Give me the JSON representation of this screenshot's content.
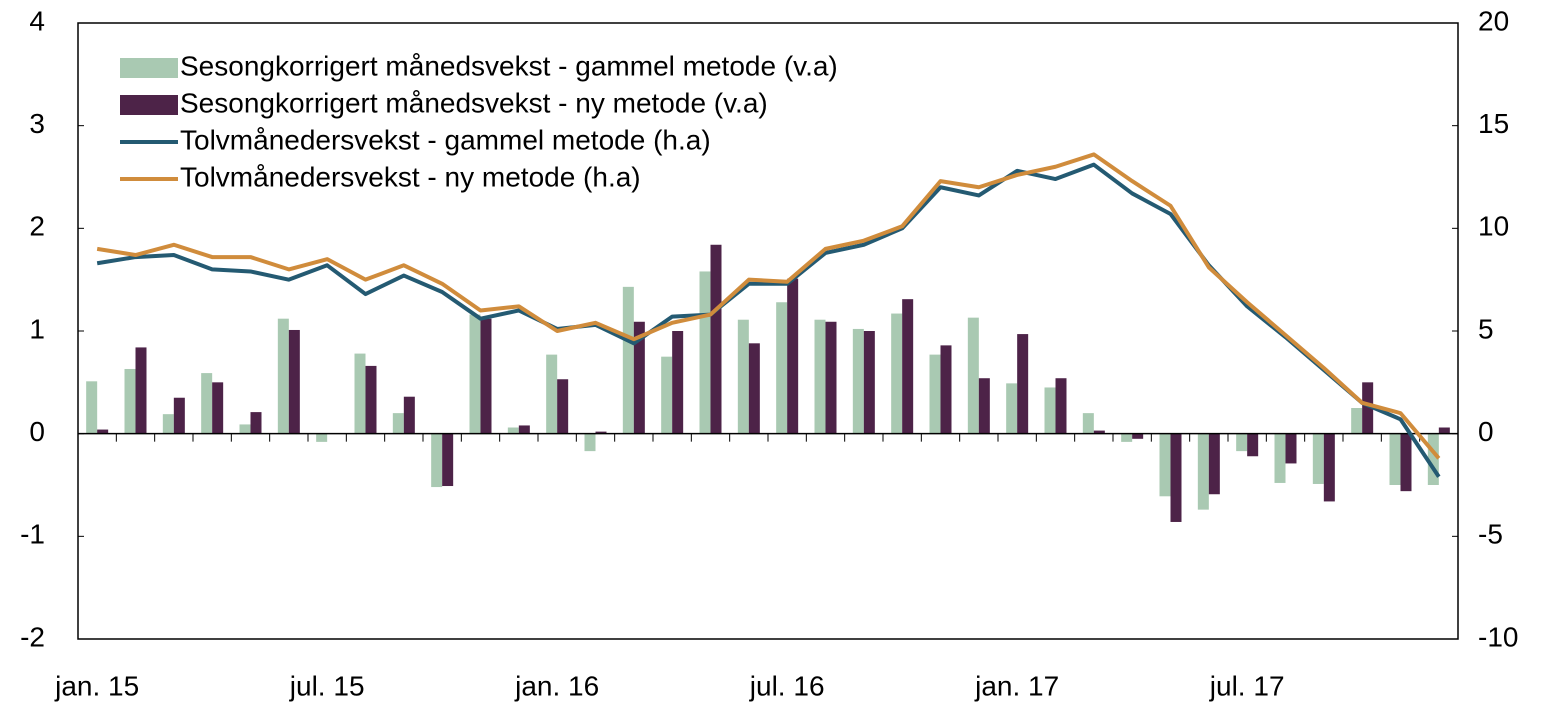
{
  "chart_data": {
    "type": "bar_line",
    "categories": [
      "jan. 15",
      null,
      null,
      null,
      null,
      null,
      "jul. 15",
      null,
      null,
      null,
      null,
      null,
      "jan. 16",
      null,
      null,
      null,
      null,
      null,
      "jul. 16",
      null,
      null,
      null,
      null,
      null,
      "jan. 17",
      null,
      null,
      null,
      null,
      null,
      "jul. 17",
      null,
      null,
      null,
      null,
      null
    ],
    "series": [
      {
        "name": "Sesongkorrigert månedsvekst - gammel metode (v.a)",
        "type": "bar",
        "color": "#a9c9b2",
        "values": [
          0.51,
          0.63,
          0.19,
          0.59,
          0.09,
          1.12,
          -0.08,
          0.78,
          0.2,
          -0.52,
          1.16,
          0.06,
          0.77,
          -0.17,
          1.43,
          0.75,
          1.58,
          1.11,
          1.28,
          1.11,
          1.02,
          1.17,
          0.77,
          1.13,
          0.49,
          0.45,
          0.2,
          -0.08,
          -0.61,
          -0.74,
          -0.17,
          -0.48,
          -0.49,
          0.25,
          -0.5,
          -0.5
        ]
      },
      {
        "name": "Sesongkorrigert månedsvekst - ny metode (v.a)",
        "type": "bar",
        "color": "#4d2348",
        "values": [
          0.04,
          0.84,
          0.35,
          0.5,
          0.21,
          1.01,
          0,
          0.66,
          0.36,
          -0.51,
          1.12,
          0.08,
          0.53,
          0.02,
          1.09,
          1.0,
          1.84,
          0.88,
          1.51,
          1.09,
          1.0,
          1.31,
          0.86,
          0.54,
          0.97,
          0.54,
          0.03,
          -0.05,
          -0.86,
          -0.59,
          -0.22,
          -0.29,
          -0.66,
          0.5,
          -0.56,
          0.06
        ]
      },
      {
        "name": "Tolvmånedersvekst - gammel metode (h.a)",
        "type": "line",
        "axis": "y2",
        "color": "#245a72",
        "values": [
          8.3,
          8.6,
          8.7,
          8.0,
          7.9,
          7.5,
          8.2,
          6.8,
          7.7,
          6.9,
          5.6,
          6.0,
          5.1,
          5.3,
          4.4,
          5.7,
          5.8,
          7.3,
          7.3,
          8.8,
          9.2,
          10.0,
          12.0,
          11.6,
          12.8,
          12.4,
          13.1,
          11.7,
          10.7,
          8.2,
          6.2,
          4.7,
          3.1,
          1.5,
          0.7,
          -2.1
        ]
      },
      {
        "name": "Tolvmånedersvekst - ny metode (h.a)",
        "type": "line",
        "axis": "y2",
        "color": "#d08c3c",
        "values": [
          9.0,
          8.7,
          9.2,
          8.6,
          8.6,
          8.0,
          8.5,
          7.5,
          8.2,
          7.3,
          6.0,
          6.2,
          5.0,
          5.4,
          4.6,
          5.4,
          5.8,
          7.5,
          7.4,
          9.0,
          9.4,
          10.1,
          12.3,
          12.0,
          12.6,
          13.0,
          13.6,
          12.3,
          11.1,
          8.1,
          6.4,
          4.8,
          3.2,
          1.5,
          1.0,
          -1.2
        ]
      }
    ],
    "ylim": [
      -2,
      4
    ],
    "yticks": [
      -2,
      -1,
      0,
      1,
      2,
      3,
      4
    ],
    "y2lim": [
      -10,
      20
    ],
    "y2ticks": [
      -10,
      -5,
      0,
      5,
      10,
      15,
      20
    ],
    "legend": "upper left",
    "grid": false
  }
}
